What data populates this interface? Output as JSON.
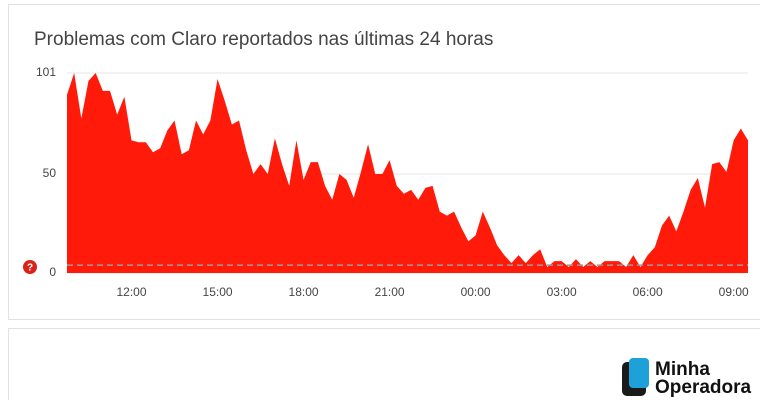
{
  "chart_data": {
    "type": "area",
    "title": "Problemas com Claro reportados nas últimas 24 horas",
    "categories": [
      null,
      null,
      null,
      null,
      null,
      null,
      null,
      null,
      null,
      "12:00",
      null,
      null,
      null,
      null,
      null,
      null,
      null,
      null,
      null,
      null,
      null,
      "15:00",
      null,
      null,
      null,
      null,
      null,
      null,
      null,
      null,
      null,
      null,
      null,
      "18:00",
      null,
      null,
      null,
      null,
      null,
      null,
      null,
      null,
      null,
      null,
      null,
      "21:00",
      null,
      null,
      null,
      null,
      null,
      null,
      null,
      null,
      null,
      null,
      null,
      "00:00",
      null,
      null,
      null,
      null,
      null,
      null,
      null,
      null,
      null,
      null,
      null,
      "03:00",
      null,
      null,
      null,
      null,
      null,
      null,
      null,
      null,
      null,
      null,
      null,
      "06:00",
      null,
      null,
      null,
      null,
      null,
      null,
      null,
      null,
      null,
      null,
      null,
      "09:00",
      null,
      null
    ],
    "series": [
      {
        "color": "#ff1a0a",
        "values": [
          90,
          101,
          78,
          97,
          101,
          92,
          92,
          80,
          89,
          67,
          66,
          66,
          61,
          63,
          72,
          77,
          60,
          62,
          77,
          70,
          77,
          98,
          87,
          75,
          77,
          62,
          50,
          55,
          50,
          68,
          55,
          44,
          67,
          47,
          56,
          56,
          44,
          37,
          50,
          47,
          38,
          51,
          65,
          50,
          50,
          57,
          44,
          40,
          42,
          37,
          43,
          44,
          31,
          29,
          31,
          23,
          16,
          19,
          31,
          23,
          14,
          9,
          5,
          9,
          5,
          9,
          12,
          3,
          6,
          6,
          3,
          7,
          3,
          6,
          3,
          6,
          6,
          6,
          3,
          9,
          3,
          9,
          13,
          24,
          29,
          21,
          31,
          42,
          48,
          33,
          55,
          56,
          51,
          67,
          73,
          67
        ]
      }
    ],
    "baseline": {
      "value": 4,
      "color": "#9a9a9a"
    },
    "ylim": [
      0,
      101
    ],
    "yticks": [
      0,
      50,
      101
    ],
    "grid": true,
    "help_icon": "?"
  },
  "logo": {
    "line1": "Minha",
    "line2": "Operadora"
  }
}
